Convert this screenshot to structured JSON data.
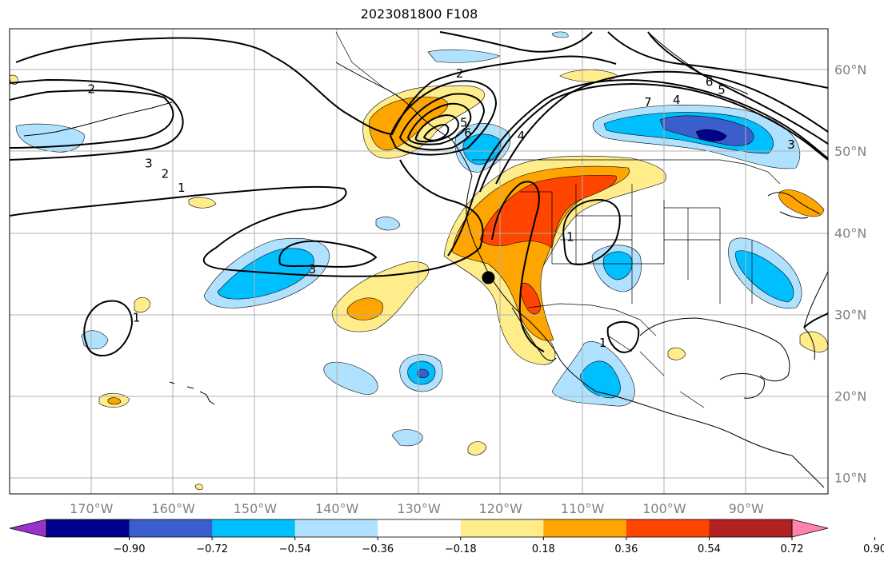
{
  "title": "2023081800 F108",
  "map": {
    "lon_range": [
      -180,
      -80
    ],
    "lat_range": [
      8,
      65
    ],
    "lat_ticks": [
      {
        "value": 10,
        "label": "10°N"
      },
      {
        "value": 20,
        "label": "20°N"
      },
      {
        "value": 30,
        "label": "30°N"
      },
      {
        "value": 40,
        "label": "40°N"
      },
      {
        "value": 50,
        "label": "50°N"
      },
      {
        "value": 60,
        "label": "60°N"
      }
    ],
    "lon_ticks": [
      {
        "value": -170,
        "label": "170°W"
      },
      {
        "value": -160,
        "label": "160°W"
      },
      {
        "value": -150,
        "label": "150°W"
      },
      {
        "value": -140,
        "label": "140°W"
      },
      {
        "value": -130,
        "label": "130°W"
      },
      {
        "value": -120,
        "label": "120°W"
      },
      {
        "value": -110,
        "label": "110°W"
      },
      {
        "value": -100,
        "label": "100°W"
      },
      {
        "value": -90,
        "label": "90°W"
      }
    ],
    "marker": {
      "lon": -121.5,
      "lat": 34.5
    },
    "contour_labels": [
      {
        "text": "2",
        "lon": -170,
        "lat": 57.6
      },
      {
        "text": "3",
        "lon": -163,
        "lat": 48.5
      },
      {
        "text": "2",
        "lon": -161,
        "lat": 47.2
      },
      {
        "text": "1",
        "lon": -159,
        "lat": 45.5
      },
      {
        "text": "2",
        "lon": -125,
        "lat": 59.5
      },
      {
        "text": "5",
        "lon": -124.5,
        "lat": 53.5
      },
      {
        "text": "6",
        "lon": -124,
        "lat": 52.2
      },
      {
        "text": "4",
        "lon": -117.5,
        "lat": 51.9
      },
      {
        "text": "7",
        "lon": -102,
        "lat": 56
      },
      {
        "text": "4",
        "lon": -98.5,
        "lat": 56.3
      },
      {
        "text": "6",
        "lon": -94.5,
        "lat": 58.5
      },
      {
        "text": "5",
        "lon": -93,
        "lat": 57.5
      },
      {
        "text": "3",
        "lon": -84.5,
        "lat": 50.8
      },
      {
        "text": "3",
        "lon": -143,
        "lat": 35.5
      },
      {
        "text": "1",
        "lon": -111.5,
        "lat": 39.5
      },
      {
        "text": "1",
        "lon": -164.5,
        "lat": 29.6
      },
      {
        "text": "1",
        "lon": -107.5,
        "lat": 26.5
      }
    ]
  },
  "colorbar": {
    "colors": [
      "#9932cc",
      "#00008b",
      "#3a5fcd",
      "#00bfff",
      "#b0e2ff",
      "#ffffff",
      "#ffec8b",
      "#ffa500",
      "#ff4500",
      "#b22222",
      "#ff83aa"
    ],
    "tick_labels": [
      "−0.90",
      "−0.72",
      "−0.54",
      "−0.36",
      "−0.18",
      "0.18",
      "0.36",
      "0.54",
      "0.72",
      "0.90"
    ]
  }
}
